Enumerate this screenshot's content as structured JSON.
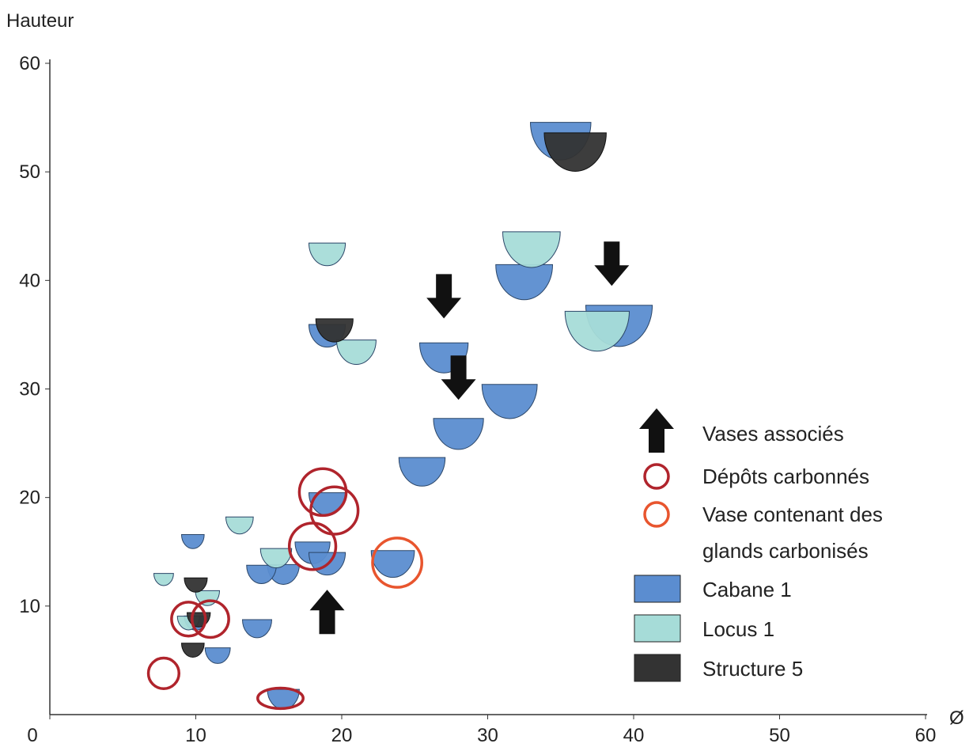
{
  "chart_data": {
    "type": "scatter",
    "ylabel": "Hauteur",
    "xlabel": "Ø",
    "xlim": [
      0,
      60
    ],
    "ylim": [
      0,
      60
    ],
    "xticks": [
      0,
      10,
      20,
      30,
      40,
      50,
      60
    ],
    "yticks": [
      10,
      20,
      30,
      40,
      50,
      60
    ],
    "series": [
      {
        "name": "Vases associés",
        "marker": "arrow",
        "color": "#111111",
        "x": [
          27,
          28,
          38.5,
          19
        ],
        "y": [
          36.5,
          29,
          39.5,
          11.5
        ],
        "directions": [
          "down",
          "down",
          "down",
          "up"
        ]
      },
      {
        "name": "Dépôts carbonnés",
        "marker": "ring",
        "color": "#b0242c",
        "x": [
          18.7,
          19.5,
          18,
          9.5,
          11,
          7.8,
          15.8
        ],
        "y": [
          20.5,
          18.8,
          15.5,
          8.8,
          8.8,
          3.8,
          1.5
        ]
      },
      {
        "name": "Vase contenant des glands carbonisés",
        "marker": "ring",
        "color": "#e8552e",
        "x": [
          23.8
        ],
        "y": [
          14
        ]
      },
      {
        "name": "Cabane 1",
        "marker": "vase",
        "color": "#5b8dd0",
        "x": [
          35,
          32.5,
          39,
          27,
          28,
          31.5,
          25.5,
          19,
          19,
          18,
          19,
          23.5,
          16,
          14.5,
          9.8,
          14.2,
          11.5,
          16,
          10
        ],
        "y": [
          53,
          40,
          36,
          33,
          26,
          29,
          22.5,
          35,
          19.5,
          15,
          14,
          14,
          13,
          13,
          16,
          8,
          5.5,
          1.5,
          8.5
        ]
      },
      {
        "name": "Locus 1",
        "marker": "vase",
        "color": "#a6dcd8",
        "x": [
          19,
          33,
          21,
          37.5,
          13,
          15.5,
          7.8,
          10.8,
          9.5
        ],
        "y": [
          42.5,
          43,
          33.5,
          35.5,
          17.5,
          14.5,
          12.5,
          10.8,
          8.5
        ]
      },
      {
        "name": "Structure 5",
        "marker": "vase",
        "color": "#333333",
        "x": [
          36,
          19.5,
          10,
          10.2,
          9.8
        ],
        "y": [
          52,
          35.5,
          12,
          8.8,
          6
        ]
      }
    ]
  }
}
